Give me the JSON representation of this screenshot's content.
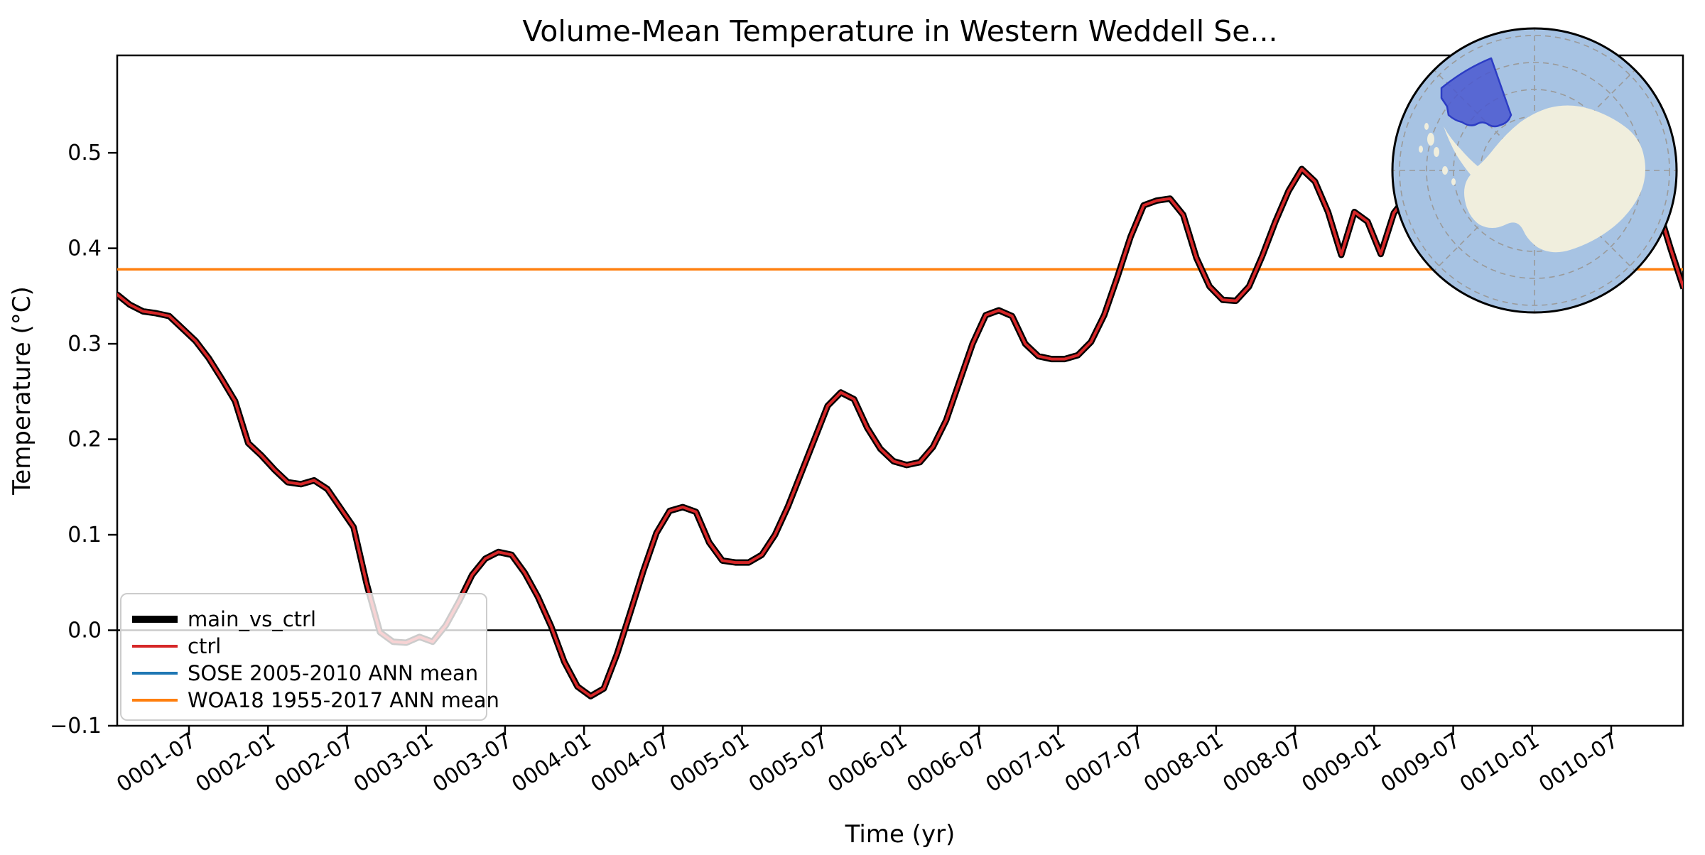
{
  "figure": {
    "title": "Volume-Mean Temperature in Western Weddell Se...",
    "xlabel": "Time (yr)",
    "ylabel": "Temperature (°C)"
  },
  "chart_data": {
    "type": "line",
    "title": "Volume-Mean Temperature in Western Weddell Se...",
    "xlabel": "Time (yr)",
    "ylabel": "Temperature (°C)",
    "x_axis": {
      "tick_labels": [
        "0001-07",
        "0002-01",
        "0002-07",
        "0003-01",
        "0003-07",
        "0004-01",
        "0004-07",
        "0005-01",
        "0005-07",
        "0006-01",
        "0006-07",
        "0007-01",
        "0007-07",
        "0008-01",
        "0008-07",
        "0009-01",
        "0009-07",
        "0010-01",
        "0010-07"
      ],
      "tick_month_index": [
        6,
        12,
        18,
        24,
        30,
        36,
        42,
        48,
        54,
        60,
        66,
        72,
        78,
        84,
        90,
        96,
        102,
        108,
        114
      ],
      "xlim_month_index": [
        0.55,
        119.45
      ],
      "start_month": "0001-01",
      "end_month": "0010-12",
      "tick_rotation_deg": 33
    },
    "y_axis": {
      "tick_labels": [
        "−0.1",
        "0.0",
        "0.1",
        "0.2",
        "0.3",
        "0.4",
        "0.5"
      ],
      "tick_values": [
        -0.1,
        0.0,
        0.1,
        0.2,
        0.3,
        0.4,
        0.5
      ],
      "ylim": [
        -0.1,
        0.602
      ]
    },
    "series": [
      {
        "name": "main_vs_ctrl",
        "color": "#000000",
        "linewidth": 9,
        "data_ref": "monthly_temperature"
      },
      {
        "name": "ctrl",
        "color": "#d62728",
        "linewidth": 4,
        "data_ref": "monthly_temperature"
      }
    ],
    "monthly_temperature": [
      0.352,
      0.341,
      0.334,
      0.332,
      0.329,
      0.316,
      0.303,
      0.285,
      0.263,
      0.24,
      0.196,
      0.183,
      0.168,
      0.155,
      0.153,
      0.157,
      0.148,
      0.128,
      0.108,
      0.048,
      -0.002,
      -0.012,
      -0.013,
      -0.007,
      -0.012,
      0.005,
      0.03,
      0.058,
      0.075,
      0.082,
      0.079,
      0.06,
      0.035,
      0.004,
      -0.033,
      -0.059,
      -0.069,
      -0.061,
      -0.025,
      0.018,
      0.062,
      0.102,
      0.125,
      0.129,
      0.124,
      0.092,
      0.073,
      0.071,
      0.071,
      0.079,
      0.1,
      0.13,
      0.165,
      0.2,
      0.235,
      0.249,
      0.242,
      0.212,
      0.19,
      0.177,
      0.173,
      0.176,
      0.192,
      0.22,
      0.26,
      0.3,
      0.33,
      0.335,
      0.329,
      0.3,
      0.287,
      0.284,
      0.284,
      0.288,
      0.302,
      0.33,
      0.37,
      0.412,
      0.445,
      0.45,
      0.452,
      0.435,
      0.39,
      0.36,
      0.346,
      0.345,
      0.36,
      0.392,
      0.428,
      0.46,
      0.483,
      0.47,
      0.438,
      0.393,
      0.438,
      0.428,
      0.394,
      0.437,
      0.455,
      0.468,
      0.485,
      0.5,
      0.505,
      0.496,
      0.478,
      0.455,
      0.437,
      0.428,
      0.425,
      0.435,
      0.452,
      0.472,
      0.492,
      0.505,
      0.51,
      0.5,
      0.478,
      0.445,
      0.4,
      0.358
    ],
    "reference_lines": [
      {
        "name": "zero-line",
        "value": 0.0,
        "color": "#000000",
        "linewidth": 2.5
      },
      {
        "name": "WOA18 1955-2017 ANN mean",
        "value": 0.378,
        "color": "#ff7f0e",
        "linewidth": 3.5
      }
    ],
    "legend": {
      "position": "lower left",
      "frame_alpha": 0.8,
      "entries": [
        {
          "label": "main_vs_ctrl",
          "color": "#000000",
          "linewidth": 10
        },
        {
          "label": "ctrl",
          "color": "#d62728",
          "linewidth": 4
        },
        {
          "label": "SOSE 2005-2010 ANN mean",
          "color": "#1f77b4",
          "linewidth": 4
        },
        {
          "label": "WOA18 1955-2017 ANN mean",
          "color": "#ff7f0e",
          "linewidth": 4
        }
      ]
    },
    "grid": false
  },
  "inset_map": {
    "description": "South polar stereographic map of Antarctica with the Western Weddell Sea region highlighted",
    "colors": {
      "ocean": "#a7c3e3",
      "land": "#f0eedd",
      "region_fill": "#4a58d0",
      "region_edge": "#2c3cc4",
      "graticule": "#9a9a9a",
      "outline": "#000000"
    }
  }
}
